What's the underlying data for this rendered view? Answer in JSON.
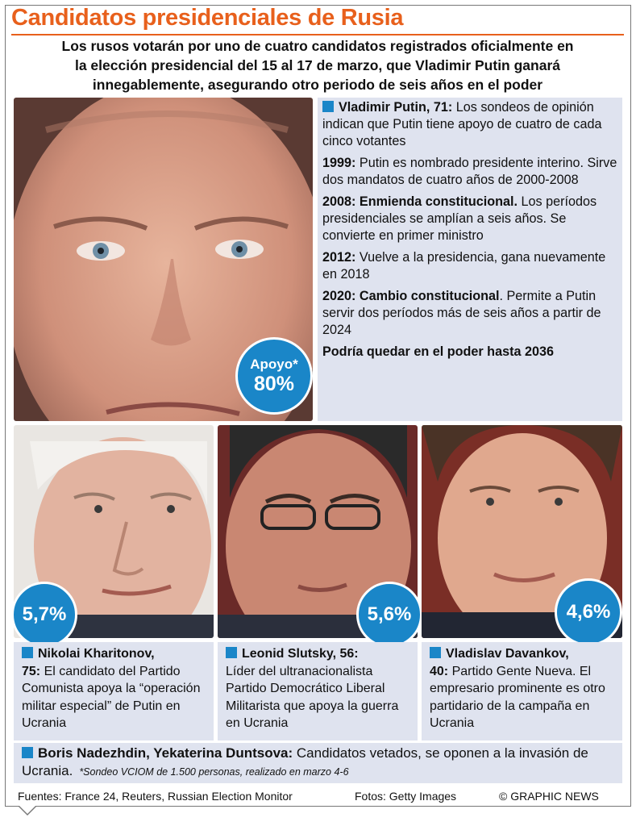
{
  "header": {
    "title": "Candidatos presidenciales de Rusia",
    "subtitle_line1": "Los rusos votarán por uno de cuatro candidatos registrados oficialmente en",
    "subtitle_line2": "la elección presidencial del 15 al 17 de marzo, que Vladimir Putin ganará",
    "subtitle_line3": "innegablemente, asegurando otro periodo de seis años en el poder"
  },
  "putin": {
    "name": "Vladimir Putin, 71:",
    "intro": " Los sondeos de opinión indican que Putin tiene apoyo de cuatro de cada cinco votantes",
    "badge_label": "Apoyo*",
    "badge_value": "80%",
    "support_percent": 80,
    "timeline": [
      {
        "head": "1999:",
        "text": " Putin es nombrado presidente interino. Sirve dos mandatos de cuatro años de 2000-2008"
      },
      {
        "head": "2008: Enmienda constitucional.",
        "text": " Los períodos presidenciales se amplían a seis años. Se convierte en primer ministro"
      },
      {
        "head": "2012:",
        "text": " Vuelve a la presidencia,  gana nuevamente en 2018"
      },
      {
        "head": "2020: Cambio constitucional",
        "text": ". Permite a Putin servir dos períodos más de seis años a partir de 2024"
      }
    ],
    "closing": "Podría quedar en el poder hasta 2036"
  },
  "candidates": [
    {
      "name": "Nikolai Kharitonov,",
      "age": "75:",
      "text": " El candidato del Partido Comunista apoya la “operación militar especial” de Putin en Ucrania",
      "badge": "5,7%",
      "support_percent": 5.7
    },
    {
      "name": "Leonid Slutsky, 56:",
      "age": "",
      "text": " Líder del ultranacionalista Partido Democrático Liberal Militarista que apoya la guerra en Ucrania",
      "badge": "5,6%",
      "support_percent": 5.6
    },
    {
      "name": "Vladislav Davankov,",
      "age": "40:",
      "text": " Partido Gente Nueva. El  empresario prominente es otro partidario de la campaña en Ucrania",
      "badge": "4,6%",
      "support_percent": 4.6
    }
  ],
  "banned": {
    "names": "Boris Nadezhdin, Yekaterina Duntsova:",
    "text": " Candidatos vetados, se oponen a la invasión de Ucrania.",
    "note": "*Sondeo VCIOM de 1.500 personas, realizado en marzo 4-6"
  },
  "footer": {
    "sources": "Fuentes: France 24, Reuters, Russian Election Monitor",
    "photos": "Fotos: Getty Images",
    "credit": "© GRAPHIC NEWS"
  },
  "colors": {
    "title_orange": "#e8601c",
    "badge_blue": "#1a86c8",
    "panel_lavender": "#dfe3ef"
  }
}
